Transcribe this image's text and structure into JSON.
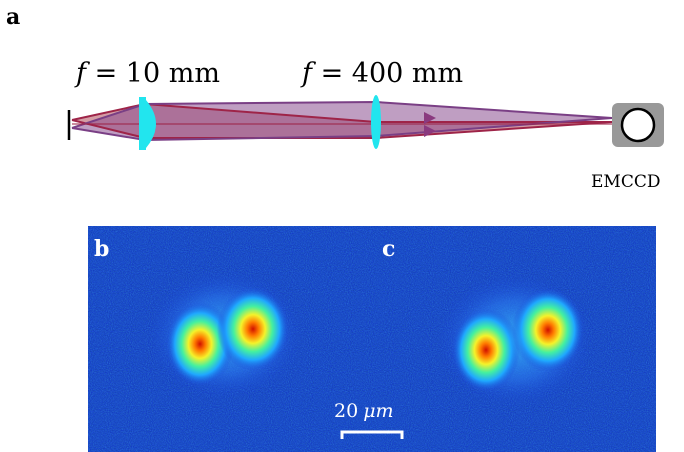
{
  "panels": {
    "a": "a",
    "b": "b",
    "c": "c"
  },
  "lens1": {
    "var": "f",
    "eq": " = 10 mm"
  },
  "lens2": {
    "var": "f",
    "eq": " = 400 mm"
  },
  "camera_label": "EMCCD",
  "scale_bar": {
    "value": "20",
    "unit": "μm"
  },
  "colors": {
    "lens": "#22e5ee",
    "beam_dark_red": "#9e2448",
    "beam_purple": "#8a4d8c",
    "camera_body": "#999999",
    "image_background": "#1133cc",
    "image_hot": "#cc1100"
  }
}
